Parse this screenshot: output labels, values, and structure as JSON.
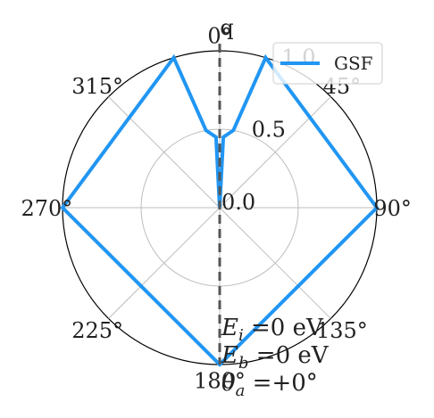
{
  "chart_data": {
    "type": "line",
    "projection": "polar",
    "zero_location": "top",
    "direction": "clockwise",
    "theta_tick_labels": [
      "0°",
      "45°",
      "90°",
      "135°",
      "180°",
      "225°",
      "270°",
      "315°"
    ],
    "radial_ticks": [
      0.0,
      0.5,
      1.0
    ],
    "radial_tick_labels": [
      "0.0",
      "0.5",
      "1.0"
    ],
    "r_lim": [
      0,
      1.0
    ],
    "grid": true,
    "reference_line": {
      "style": "dashed",
      "angles_deg": [
        0,
        180
      ],
      "label": "q"
    },
    "legend": {
      "placement": "top-right",
      "entries": [
        "GSF"
      ]
    },
    "series": [
      {
        "name": "GSF",
        "color": "#2196F3",
        "theta_deg": [
          0,
          3,
          10,
          17,
          90,
          180,
          270,
          343,
          350,
          357,
          0
        ],
        "r": [
          0.0,
          0.45,
          0.5,
          1.0,
          1.0,
          1.0,
          1.0,
          1.0,
          0.5,
          0.45,
          0.0
        ]
      }
    ],
    "annotations": {
      "line1_symbol": "E",
      "line1_sub": "i",
      "line1_value": " =0 eV",
      "line2_symbol": "E",
      "line2_sub": "b",
      "line2_value": " =0 eV",
      "line3_symbol": "θ",
      "line3_sub": "a",
      "line3_value": " =+0°"
    }
  }
}
